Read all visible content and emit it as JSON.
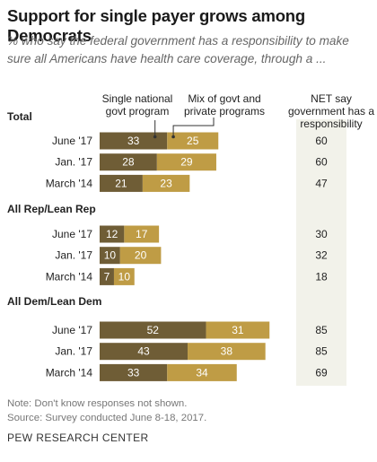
{
  "title": "Support for single payer grows among Democrats",
  "subtitle": "% who say the federal government has a responsibility to make sure all Americans have health care coverage, through a ...",
  "legend": {
    "single": "Single national govt program",
    "mix": "Mix of govt and private programs",
    "net": "NET say government has a responsibility"
  },
  "colors": {
    "single": "#6f5d36",
    "mix": "#bf9c45",
    "net_bg": "#f2f2ea"
  },
  "chart_data": {
    "type": "bar",
    "stacked": true,
    "orientation": "horizontal",
    "title": "Support for single payer grows among Democrats",
    "groups": [
      {
        "name": "Total",
        "categories": [
          "June '17",
          "Jan. '17",
          "March '14"
        ],
        "series": [
          {
            "name": "Single national govt program",
            "values": [
              33,
              28,
              21
            ]
          },
          {
            "name": "Mix of govt and private programs",
            "values": [
              25,
              29,
              23
            ]
          }
        ],
        "net": [
          60,
          60,
          47
        ]
      },
      {
        "name": "All Rep/Lean Rep",
        "categories": [
          "June '17",
          "Jan. '17",
          "March '14"
        ],
        "series": [
          {
            "name": "Single national govt program",
            "values": [
              12,
              10,
              7
            ]
          },
          {
            "name": "Mix of govt and private programs",
            "values": [
              17,
              20,
              10
            ]
          }
        ],
        "net": [
          30,
          32,
          18
        ]
      },
      {
        "name": "All Dem/Lean Dem",
        "categories": [
          "June '17",
          "Jan. '17",
          "March '14"
        ],
        "series": [
          {
            "name": "Single national govt program",
            "values": [
              52,
              43,
              33
            ]
          },
          {
            "name": "Mix of govt and private programs",
            "values": [
              31,
              38,
              34
            ]
          }
        ],
        "net": [
          85,
          85,
          69
        ]
      }
    ]
  },
  "footer": {
    "note": "Note: Don't know responses not shown.",
    "source": "Source: Survey conducted June 8-18, 2017.",
    "org": "PEW RESEARCH CENTER"
  }
}
